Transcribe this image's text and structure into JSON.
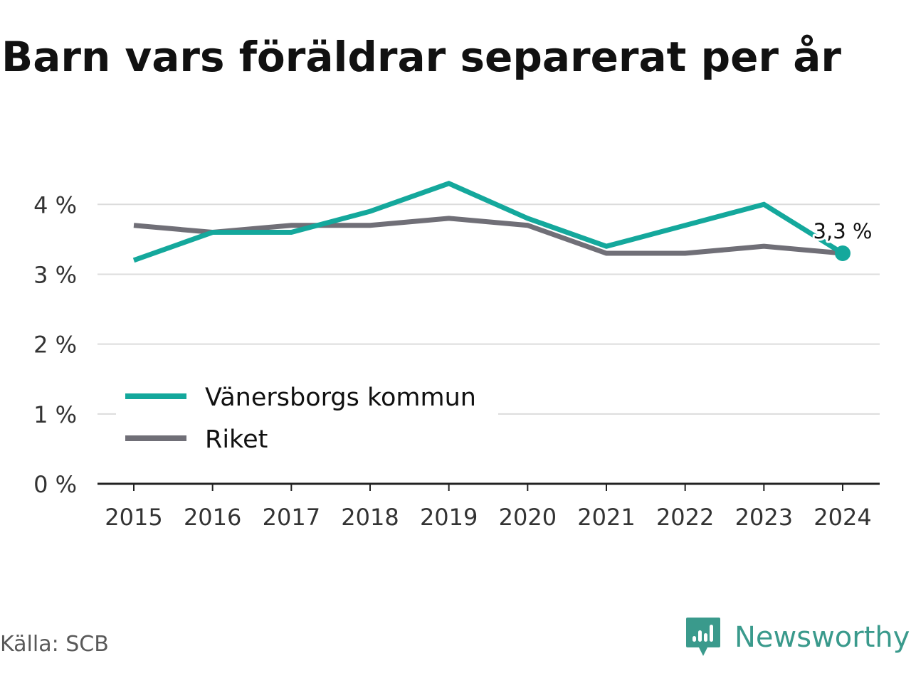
{
  "title": "Barn vars föräldrar separerat per år",
  "source": "Källa: SCB",
  "brand": {
    "name": "Newsworthy",
    "icon": "newsworthy-logo-icon",
    "color": "#3a9a8c"
  },
  "chart_data": {
    "type": "line",
    "title": "Barn vars föräldrar separerat per år",
    "xlabel": "",
    "ylabel": "",
    "x": [
      "2015",
      "2016",
      "2017",
      "2018",
      "2019",
      "2020",
      "2021",
      "2022",
      "2023",
      "2024"
    ],
    "ylim": [
      0,
      4.4
    ],
    "yticks": [
      0,
      1,
      2,
      3,
      4
    ],
    "ytick_labels": [
      "0 %",
      "1 %",
      "2 %",
      "3 %",
      "4 %"
    ],
    "grid": true,
    "legend_position": "bottom-left",
    "series": [
      {
        "name": "Vänersborgs kommun",
        "color": "#14a89c",
        "values": [
          3.2,
          3.6,
          3.6,
          3.9,
          4.3,
          3.8,
          3.4,
          3.7,
          4.0,
          3.3
        ]
      },
      {
        "name": "Riket",
        "color": "#706f77",
        "values": [
          3.7,
          3.6,
          3.7,
          3.7,
          3.8,
          3.7,
          3.3,
          3.3,
          3.4,
          3.3
        ]
      }
    ],
    "annotations": [
      {
        "series": "Vänersborgs kommun",
        "x": "2024",
        "text": "3,3 %"
      }
    ]
  }
}
